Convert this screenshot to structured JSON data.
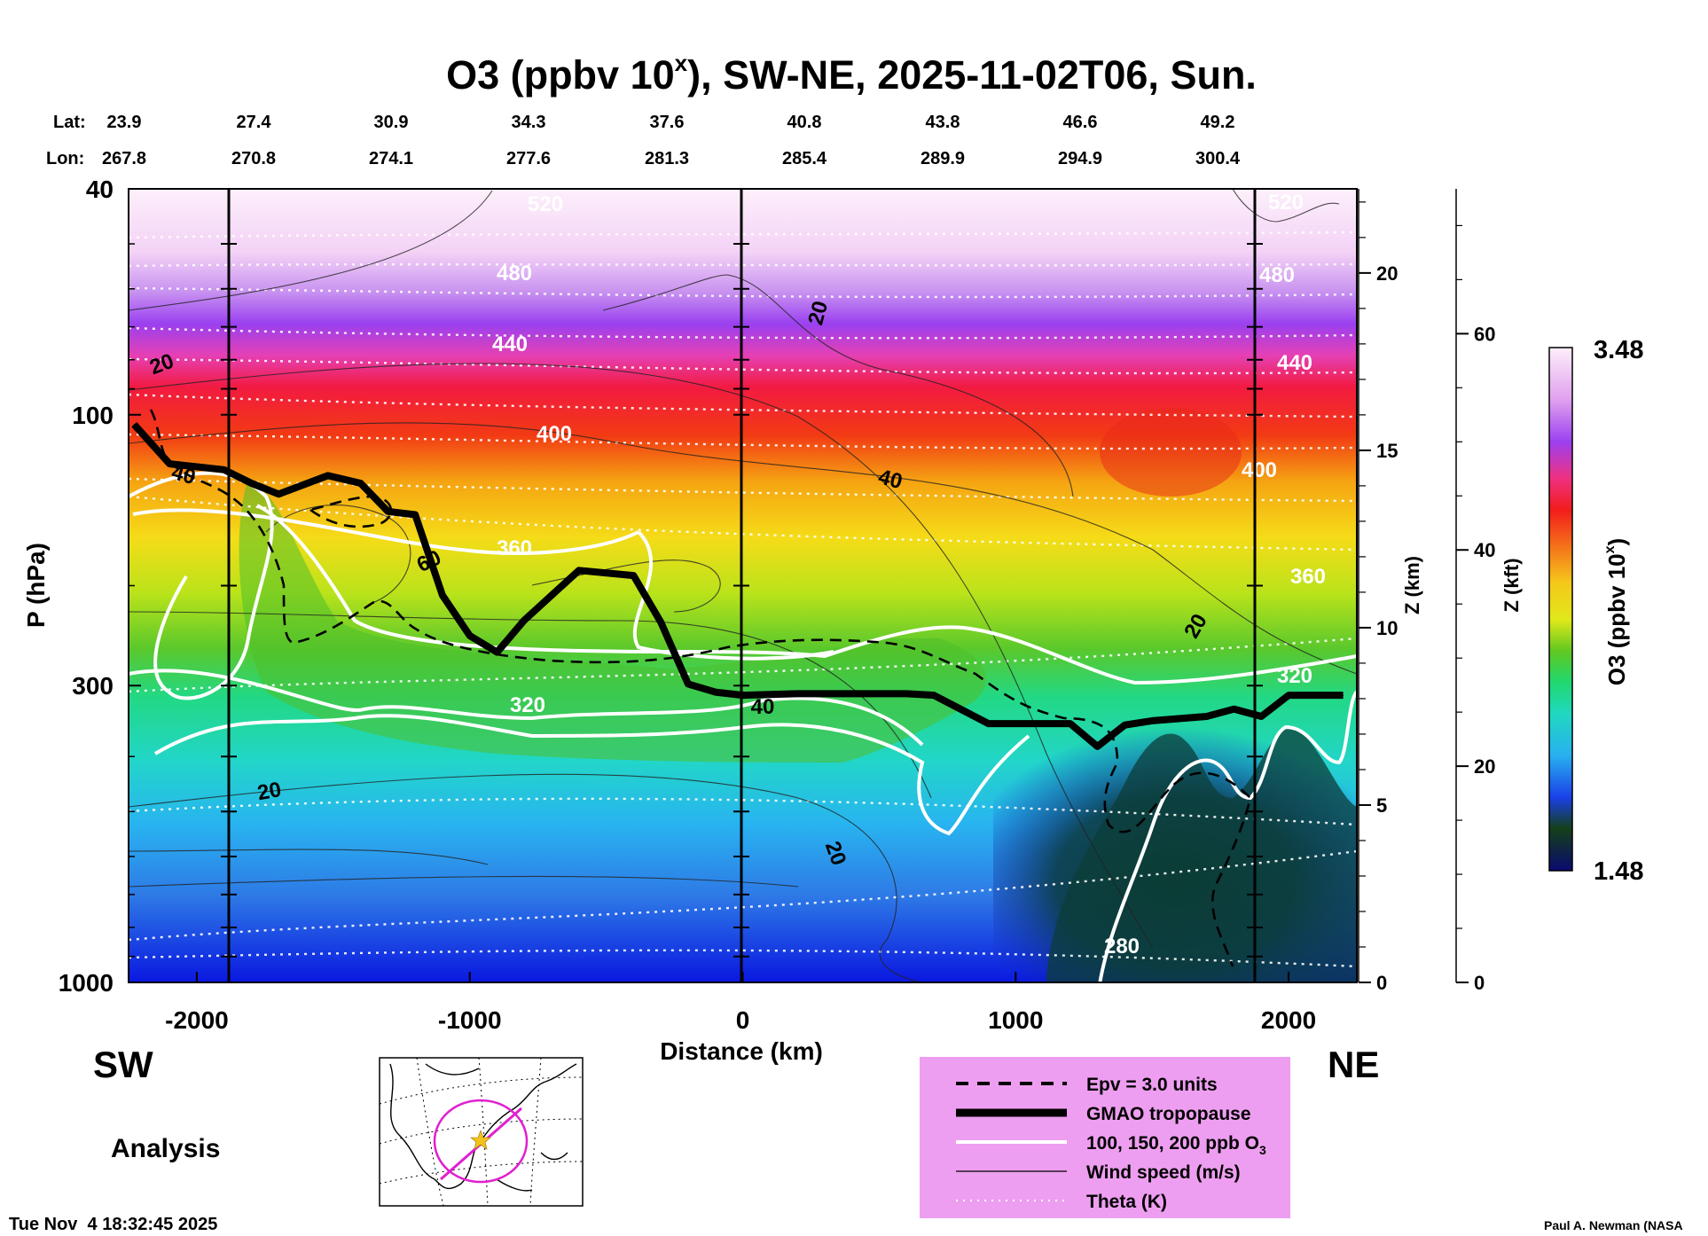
{
  "chart_data": {
    "type": "heatmap",
    "title": "O3 (ppbv 10^x), SW-NE, 2025-11-02T06, Sun.",
    "title_main": "O3 (ppbv 10",
    "title_sup": "x",
    "title_rest": "), SW-NE, 2025-11-02T06, Sun.",
    "xlabel": "Distance (km)",
    "ylabel": "P (hPa)",
    "z_km_label": "Z (km)",
    "z_kft_label": "Z (kft)",
    "colorbar_label": "O3 (ppbv 10",
    "colorbar_sup": "x",
    "colorbar_close": ")",
    "colorbar_range": [
      1.48,
      3.48
    ],
    "colorbar_min_label": "1.48",
    "colorbar_max_label": "3.48",
    "xlim": [
      -2250,
      2250
    ],
    "ylim_hpa": [
      1000,
      40
    ],
    "x_ticks": [
      "-2000",
      "-1000",
      "0",
      "1000",
      "2000"
    ],
    "x_tick_values": [
      -2000,
      -1000,
      0,
      1000,
      2000
    ],
    "p_ticks": [
      "40",
      "100",
      "300",
      "1000"
    ],
    "p_tick_values": [
      40,
      100,
      300,
      1000
    ],
    "z_km_ticks": [
      "0",
      "5",
      "10",
      "15",
      "20"
    ],
    "z_km_tick_values": [
      0,
      5,
      10,
      15,
      20
    ],
    "z_kft_ticks": [
      "0",
      "20",
      "40",
      "60"
    ],
    "z_kft_tick_values": [
      0,
      20,
      40,
      60
    ],
    "lat_label": "Lat:",
    "lon_label": "Lon:",
    "lat_values": [
      "23.9",
      "27.4",
      "30.9",
      "34.3",
      "37.6",
      "40.8",
      "43.8",
      "46.6",
      "49.2"
    ],
    "lon_values": [
      "267.8",
      "270.8",
      "274.1",
      "277.6",
      "281.3",
      "285.4",
      "289.9",
      "294.9",
      "300.4"
    ],
    "sw_label": "SW",
    "ne_label": "NE",
    "analysis_label": "Analysis",
    "timestamp": "Tue Nov  4 18:32:45 2025",
    "credit": "Paul A. Newman (NASA",
    "theta_labels": [
      "520",
      "480",
      "440",
      "400",
      "360",
      "320",
      "280"
    ],
    "wind_labels": [
      "20",
      "40",
      "60"
    ],
    "legend": [
      {
        "style": "dashed",
        "label": "Epv = 3.0 units"
      },
      {
        "style": "thick",
        "label": "GMAO tropopause"
      },
      {
        "style": "white",
        "label": "100, 150, 200 ppb O",
        "sub": "3"
      },
      {
        "style": "thin",
        "label": "Wind speed (m/s)"
      },
      {
        "style": "dotted",
        "label": "Theta (K)"
      }
    ],
    "tropopause": {
      "distance_km": [
        -2230,
        -2100,
        -1900,
        -1800,
        -1700,
        -1520,
        -1400,
        -1300,
        -1200,
        -1100,
        -1000,
        -900,
        -800,
        -600,
        -400,
        -300,
        -200,
        -100,
        0,
        200,
        400,
        600,
        700,
        900,
        1000,
        1200,
        1300,
        1400,
        1500,
        1700,
        1800,
        1900,
        2000,
        2200
      ],
      "pressure_hpa": [
        104,
        122,
        125,
        132,
        138,
        128,
        132,
        148,
        150,
        208,
        245,
        262,
        230,
        188,
        192,
        232,
        298,
        308,
        312,
        310,
        310,
        310,
        312,
        350,
        350,
        350,
        384,
        352,
        346,
        340,
        330,
        340,
        312,
        312
      ]
    },
    "colors": {
      "tropopause": "#000000",
      "ozone_contour": "#ffffff",
      "theta": "#ffffff",
      "legend_bg": "#ee9ef0",
      "map_track": "#e020d0",
      "map_star": "#f2c419"
    }
  }
}
